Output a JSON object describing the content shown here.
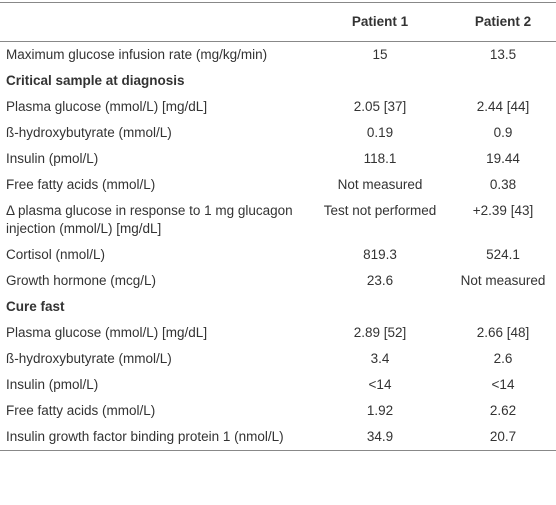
{
  "table": {
    "header": [
      "Patient 1",
      "Patient 2"
    ],
    "rows": [
      {
        "label": "Maximum glucose infusion rate (mg/kg/min)",
        "values": [
          "15",
          "13.5"
        ]
      },
      {
        "section": "Critical sample at diagnosis"
      },
      {
        "label": "Plasma glucose (mmol/L) [mg/dL]",
        "values": [
          "2.05 [37]",
          "2.44 [44]"
        ]
      },
      {
        "label": "ß-hydroxybutyrate (mmol/L)",
        "values": [
          "0.19",
          "0.9"
        ]
      },
      {
        "label": "Insulin (pmol/L)",
        "values": [
          "118.1",
          "19.44"
        ]
      },
      {
        "label": "Free fatty acids (mmol/L)",
        "values": [
          "Not measured",
          "0.38"
        ]
      },
      {
        "label": "Δ plasma glucose in response to 1 mg glucagon injection (mmol/L) [mg/dL]",
        "values": [
          "Test not performed",
          "+2.39 [43]"
        ]
      },
      {
        "label": "Cortisol (nmol/L)",
        "values": [
          "819.3",
          "524.1"
        ]
      },
      {
        "label": "Growth hormone (mcg/L)",
        "values": [
          "23.6",
          "Not measured"
        ]
      },
      {
        "section": "Cure fast"
      },
      {
        "label": "Plasma glucose (mmol/L) [mg/dL]",
        "values": [
          "2.89 [52]",
          "2.66 [48]"
        ]
      },
      {
        "label": "ß-hydroxybutyrate (mmol/L)",
        "values": [
          "3.4",
          "2.6"
        ]
      },
      {
        "label": "Insulin (pmol/L)",
        "values": [
          "<14",
          "<14"
        ]
      },
      {
        "label": "Free fatty acids (mmol/L)",
        "values": [
          "1.92",
          "2.62"
        ]
      },
      {
        "label": "Insulin growth factor binding protein 1 (nmol/L)",
        "values": [
          "34.9",
          "20.7"
        ]
      }
    ]
  }
}
